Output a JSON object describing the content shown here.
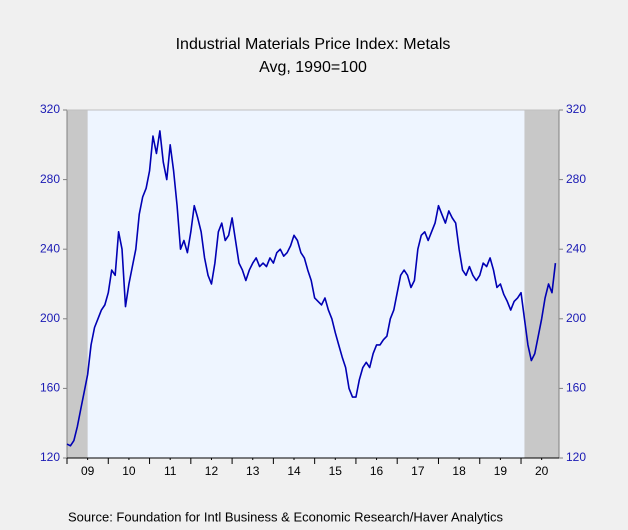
{
  "chart_data": {
    "type": "line",
    "title": "Industrial Materials Price Index: Metals",
    "subtitle": "Avg, 1990=100",
    "source": "Source:  Foundation for Intl Business & Economic Research/Haver Analytics",
    "x": [
      2009,
      2009.083,
      2009.167,
      2009.25,
      2009.333,
      2009.417,
      2009.5,
      2009.583,
      2009.667,
      2009.75,
      2009.833,
      2009.917,
      2010,
      2010.083,
      2010.167,
      2010.25,
      2010.333,
      2010.417,
      2010.5,
      2010.583,
      2010.667,
      2010.75,
      2010.833,
      2010.917,
      2011,
      2011.083,
      2011.167,
      2011.25,
      2011.333,
      2011.417,
      2011.5,
      2011.583,
      2011.667,
      2011.75,
      2011.833,
      2011.917,
      2012,
      2012.083,
      2012.167,
      2012.25,
      2012.333,
      2012.417,
      2012.5,
      2012.583,
      2012.667,
      2012.75,
      2012.833,
      2012.917,
      2013,
      2013.083,
      2013.167,
      2013.25,
      2013.333,
      2013.417,
      2013.5,
      2013.583,
      2013.667,
      2013.75,
      2013.833,
      2013.917,
      2014,
      2014.083,
      2014.167,
      2014.25,
      2014.333,
      2014.417,
      2014.5,
      2014.583,
      2014.667,
      2014.75,
      2014.833,
      2014.917,
      2015,
      2015.083,
      2015.167,
      2015.25,
      2015.333,
      2015.417,
      2015.5,
      2015.583,
      2015.667,
      2015.75,
      2015.833,
      2015.917,
      2016,
      2016.083,
      2016.167,
      2016.25,
      2016.333,
      2016.417,
      2016.5,
      2016.583,
      2016.667,
      2016.75,
      2016.833,
      2016.917,
      2017,
      2017.083,
      2017.167,
      2017.25,
      2017.333,
      2017.417,
      2017.5,
      2017.583,
      2017.667,
      2017.75,
      2017.833,
      2017.917,
      2018,
      2018.083,
      2018.167,
      2018.25,
      2018.333,
      2018.417,
      2018.5,
      2018.583,
      2018.667,
      2018.75,
      2018.833,
      2018.917,
      2019,
      2019.083,
      2019.167,
      2019.25,
      2019.333,
      2019.417,
      2019.5,
      2019.583,
      2019.667,
      2019.75,
      2019.833,
      2019.917,
      2020,
      2020.083,
      2020.167,
      2020.25,
      2020.333,
      2020.417,
      2020.5,
      2020.583,
      2020.667,
      2020.75,
      2020.833
    ],
    "series": [
      {
        "color": "#0000b4",
        "values": [
          128,
          127,
          130,
          138,
          148,
          158,
          168,
          185,
          195,
          200,
          205,
          208,
          215,
          228,
          225,
          250,
          240,
          207,
          220,
          230,
          240,
          260,
          270,
          275,
          285,
          305,
          295,
          308,
          290,
          280,
          300,
          285,
          265,
          240,
          245,
          238,
          250,
          265,
          258,
          250,
          235,
          225,
          220,
          232,
          250,
          255,
          245,
          248,
          258,
          245,
          232,
          228,
          222,
          228,
          232,
          235,
          230,
          232,
          230,
          235,
          232,
          238,
          240,
          236,
          238,
          242,
          248,
          245,
          238,
          235,
          228,
          222,
          212,
          210,
          208,
          212,
          205,
          200,
          192,
          185,
          178,
          172,
          160,
          155,
          155,
          165,
          172,
          175,
          172,
          180,
          185,
          185,
          188,
          190,
          200,
          205,
          215,
          225,
          228,
          225,
          218,
          222,
          240,
          248,
          250,
          245,
          250,
          255,
          265,
          260,
          255,
          262,
          258,
          255,
          240,
          228,
          225,
          230,
          225,
          222,
          225,
          232,
          230,
          235,
          228,
          218,
          220,
          214,
          210,
          205,
          210,
          212,
          215,
          200,
          185,
          176,
          180,
          190,
          200,
          212,
          220,
          215,
          232
        ]
      }
    ],
    "xlim": [
      2009,
      2020.92
    ],
    "xticks": [
      {
        "value": 2009.5,
        "label": "09"
      },
      {
        "value": 2010.5,
        "label": "10"
      },
      {
        "value": 2011.5,
        "label": "11"
      },
      {
        "value": 2012.5,
        "label": "12"
      },
      {
        "value": 2013.5,
        "label": "13"
      },
      {
        "value": 2014.5,
        "label": "14"
      },
      {
        "value": 2015.5,
        "label": "15"
      },
      {
        "value": 2016.5,
        "label": "16"
      },
      {
        "value": 2017.5,
        "label": "17"
      },
      {
        "value": 2018.5,
        "label": "18"
      },
      {
        "value": 2019.5,
        "label": "19"
      },
      {
        "value": 2020.5,
        "label": "20"
      }
    ],
    "ylim": [
      120,
      320
    ],
    "yticks": [
      120,
      160,
      200,
      240,
      280,
      320
    ],
    "shaded_periods": [
      [
        2009,
        2009.5
      ],
      [
        2020.083,
        2020.92
      ]
    ],
    "grid": false
  }
}
